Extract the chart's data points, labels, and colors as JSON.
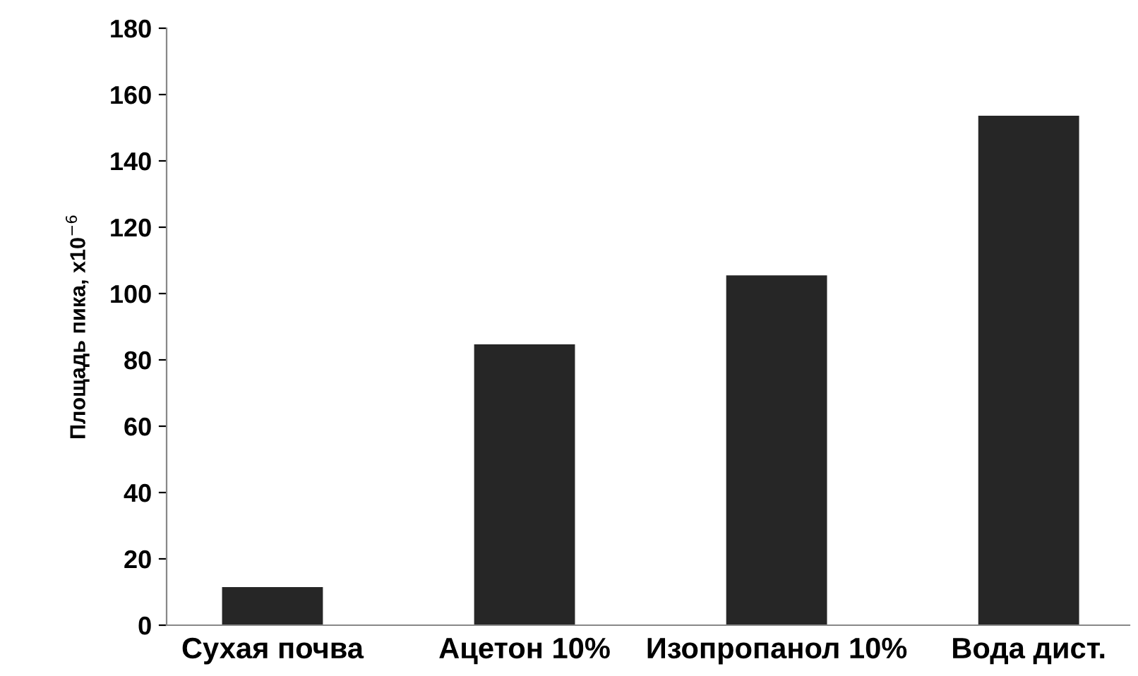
{
  "chart_data": {
    "type": "bar",
    "ylabel": "Площадь пика, x10$^{−6}$",
    "categories": [
      "Сухая почва",
      "Ацетон 10%",
      "Изопропанол 10%",
      "Вода дист."
    ],
    "values": [
      11.5,
      84.7,
      105.5,
      153.6
    ],
    "color": "#262626",
    "ylim": [
      0,
      180
    ],
    "yticks": [
      0,
      20,
      40,
      60,
      80,
      100,
      120,
      140,
      160,
      180
    ],
    "grid": false,
    "legend": false
  }
}
